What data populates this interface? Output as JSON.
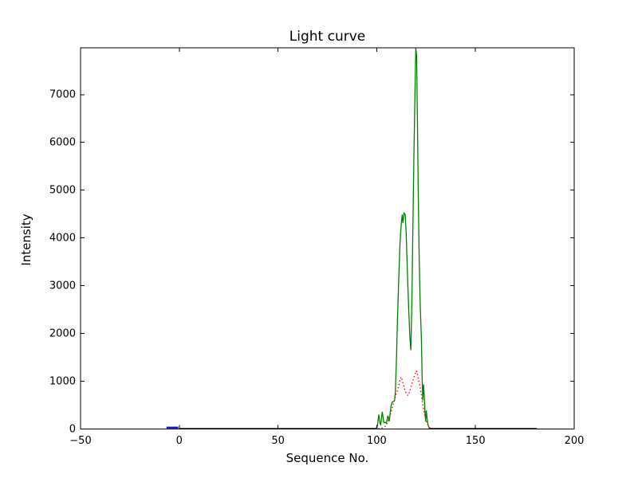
{
  "chart_data": {
    "type": "line",
    "title": "Light curve",
    "xlabel": "Sequence No.",
    "ylabel": "Intensity",
    "xlim": [
      -50,
      200
    ],
    "ylim": [
      0,
      7980
    ],
    "grid": false,
    "legend": null,
    "background": "#ffffff",
    "spine_color": "#000000",
    "x_ticks": [
      {
        "v": -50,
        "label": "−50"
      },
      {
        "v": 0,
        "label": "0"
      },
      {
        "v": 50,
        "label": "50"
      },
      {
        "v": 100,
        "label": "100"
      },
      {
        "v": 150,
        "label": "150"
      },
      {
        "v": 200,
        "label": "200"
      }
    ],
    "y_ticks": [
      {
        "v": 0,
        "label": "0"
      },
      {
        "v": 1000,
        "label": "1000"
      },
      {
        "v": 2000,
        "label": "2000"
      },
      {
        "v": 3000,
        "label": "3000"
      },
      {
        "v": 4000,
        "label": "4000"
      },
      {
        "v": 5000,
        "label": "5000"
      },
      {
        "v": 6000,
        "label": "6000"
      },
      {
        "v": 7000,
        "label": "7000"
      }
    ],
    "series": [
      {
        "name": "blue-segment",
        "color": "#0000ff",
        "style": "solid",
        "width": 2.2,
        "points": [
          [
            -6.5,
            30
          ],
          [
            -0.5,
            30
          ]
        ]
      },
      {
        "name": "green-curve",
        "color": "#008000",
        "style": "solid",
        "width": 1.3,
        "points": [
          [
            0,
            15
          ],
          [
            10,
            15
          ],
          [
            20,
            15
          ],
          [
            30,
            15
          ],
          [
            40,
            15
          ],
          [
            50,
            15
          ],
          [
            60,
            15
          ],
          [
            70,
            15
          ],
          [
            80,
            15
          ],
          [
            90,
            15
          ],
          [
            99.5,
            15
          ],
          [
            100.3,
            40
          ],
          [
            101.0,
            300
          ],
          [
            101.7,
            110
          ],
          [
            102.0,
            90
          ],
          [
            102.8,
            360
          ],
          [
            103.6,
            130
          ],
          [
            104.4,
            140
          ],
          [
            104.9,
            120
          ],
          [
            105.6,
            280
          ],
          [
            106.3,
            160
          ],
          [
            107.2,
            470
          ],
          [
            107.8,
            560
          ],
          [
            108.6,
            580
          ],
          [
            109.0,
            600
          ],
          [
            109.4,
            760
          ],
          [
            110.0,
            1500
          ],
          [
            110.5,
            2300
          ],
          [
            111.2,
            3200
          ],
          [
            111.8,
            3900
          ],
          [
            112.4,
            4280
          ],
          [
            112.9,
            4490
          ],
          [
            113.3,
            4310
          ],
          [
            113.8,
            4520
          ],
          [
            114.4,
            4490
          ],
          [
            114.9,
            4100
          ],
          [
            115.5,
            3300
          ],
          [
            116.2,
            2500
          ],
          [
            116.8,
            1900
          ],
          [
            117.3,
            1650
          ],
          [
            117.8,
            2700
          ],
          [
            118.3,
            4200
          ],
          [
            118.8,
            5600
          ],
          [
            119.3,
            6900
          ],
          [
            119.8,
            7980
          ],
          [
            120.2,
            7800
          ],
          [
            120.6,
            6500
          ],
          [
            121.0,
            5000
          ],
          [
            121.5,
            3600
          ],
          [
            122.0,
            2600
          ],
          [
            122.6,
            1900
          ],
          [
            123.0,
            1100
          ],
          [
            123.3,
            600
          ],
          [
            123.7,
            930
          ],
          [
            124.1,
            650
          ],
          [
            124.4,
            380
          ],
          [
            124.8,
            160
          ],
          [
            125.1,
            390
          ],
          [
            125.5,
            230
          ],
          [
            126.0,
            80
          ],
          [
            126.5,
            25
          ],
          [
            127.0,
            15
          ],
          [
            128,
            15
          ],
          [
            140,
            15
          ],
          [
            150,
            15
          ],
          [
            160,
            15
          ],
          [
            170,
            15
          ],
          [
            181,
            15
          ]
        ]
      },
      {
        "name": "red-dotted-curve",
        "color": "#ff0000",
        "style": "dotted",
        "width": 1.4,
        "points": [
          [
            0,
            8
          ],
          [
            20,
            8
          ],
          [
            40,
            8
          ],
          [
            60,
            8
          ],
          [
            80,
            8
          ],
          [
            95,
            8
          ],
          [
            100,
            8
          ],
          [
            102,
            15
          ],
          [
            103.5,
            30
          ],
          [
            104.5,
            60
          ],
          [
            105.3,
            120
          ],
          [
            106.1,
            200
          ],
          [
            106.9,
            300
          ],
          [
            107.7,
            420
          ],
          [
            108.5,
            540
          ],
          [
            109.3,
            650
          ],
          [
            110.1,
            760
          ],
          [
            110.9,
            880
          ],
          [
            111.7,
            1010
          ],
          [
            112.3,
            1090
          ],
          [
            112.9,
            1030
          ],
          [
            113.5,
            930
          ],
          [
            114.1,
            840
          ],
          [
            114.7,
            770
          ],
          [
            115.3,
            720
          ],
          [
            115.9,
            700
          ],
          [
            116.5,
            770
          ],
          [
            117.1,
            850
          ],
          [
            117.7,
            930
          ],
          [
            118.3,
            1010
          ],
          [
            118.9,
            1090
          ],
          [
            119.5,
            1170
          ],
          [
            120.0,
            1220
          ],
          [
            120.5,
            1170
          ],
          [
            121.0,
            1060
          ],
          [
            121.6,
            940
          ],
          [
            122.2,
            810
          ],
          [
            122.8,
            650
          ],
          [
            123.4,
            490
          ],
          [
            124.0,
            350
          ],
          [
            124.6,
            230
          ],
          [
            125.2,
            150
          ],
          [
            125.8,
            90
          ],
          [
            126.4,
            45
          ],
          [
            127.0,
            20
          ],
          [
            128,
            8
          ],
          [
            140,
            8
          ],
          [
            160,
            8
          ],
          [
            181,
            8
          ]
        ]
      }
    ]
  }
}
